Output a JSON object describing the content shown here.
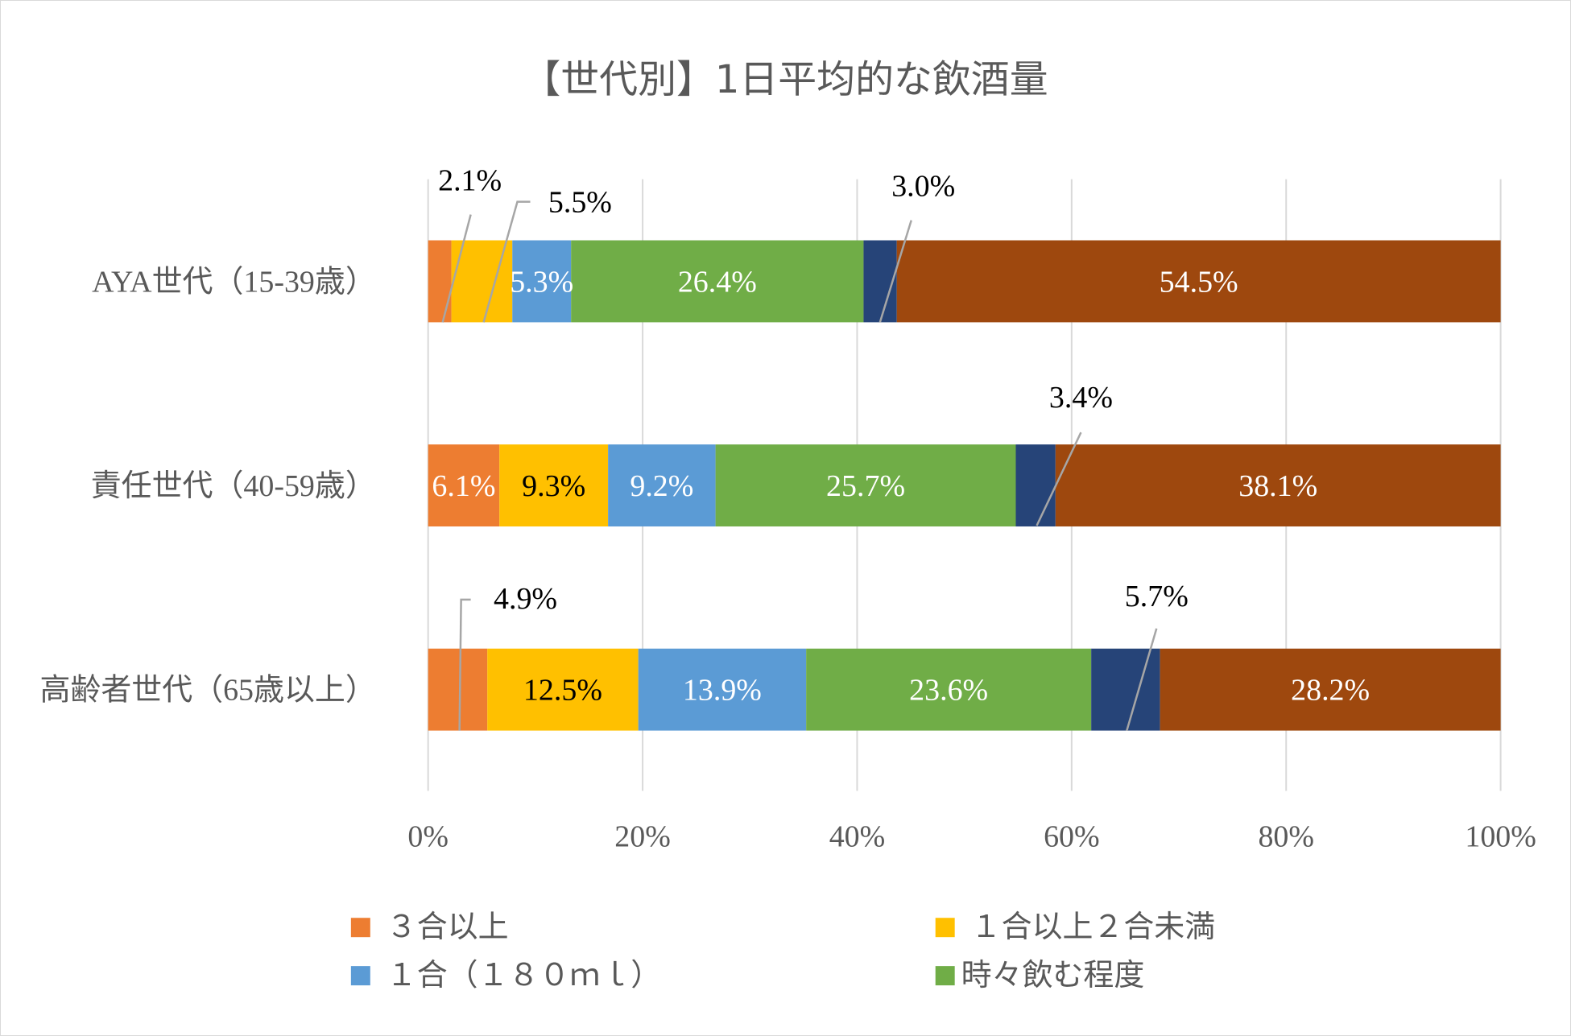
{
  "chart_data": {
    "type": "bar",
    "orientation": "horizontal",
    "stacked": "percent",
    "title": "【世代別】1日平均的な飲酒量",
    "categories": [
      "AYA世代（15-39歳）",
      "責任世代（40-59歳）",
      "高齢者世代（65歳以上）"
    ],
    "series": [
      {
        "name": "3合以上",
        "color": "#ED7D31",
        "values": [
          2.1,
          6.1,
          4.9
        ],
        "labels": [
          "2.1%",
          "6.1%",
          "4.9%"
        ]
      },
      {
        "name": "1合以上2合未満",
        "color": "#FFC000",
        "values": [
          5.5,
          9.3,
          12.5
        ],
        "labels": [
          "5.5%",
          "9.3%",
          "12.5%"
        ]
      },
      {
        "name": "1合（180ml）",
        "color": "#5B9BD5",
        "values": [
          5.3,
          9.2,
          13.9
        ],
        "labels": [
          "5.3%",
          "9.2%",
          "13.9%"
        ]
      },
      {
        "name": "時々飲む程度",
        "color": "#70AD47",
        "values": [
          26.4,
          25.7,
          23.6
        ],
        "labels": [
          "26.4%",
          "25.7%",
          "23.6%"
        ]
      },
      {
        "name": "",
        "color": "#264478",
        "values": [
          3.0,
          3.4,
          5.7
        ],
        "labels": [
          "3.0%",
          "3.4%",
          "5.7%"
        ]
      },
      {
        "name": "",
        "color": "#9E480E",
        "values": [
          54.5,
          38.1,
          28.2
        ],
        "labels": [
          "54.5%",
          "38.1%",
          "28.2%"
        ]
      }
    ],
    "legend_labels": [
      "３合以上",
      "１合以上２合未満",
      "１合（１８０ｍｌ）",
      "時々飲む程度"
    ],
    "xlim": [
      0,
      100
    ],
    "xticks": [
      "0%",
      "20%",
      "40%",
      "60%",
      "80%",
      "100%"
    ],
    "grid": true,
    "legend": "bottom"
  }
}
